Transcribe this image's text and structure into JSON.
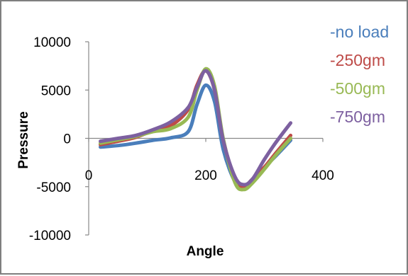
{
  "chart_data": {
    "type": "line",
    "title": "",
    "xlabel": "Angle",
    "ylabel": "Pressure",
    "xlim": [
      0,
      400
    ],
    "ylim": [
      -10000,
      10000
    ],
    "x_ticks": [
      "0",
      "200",
      "400"
    ],
    "y_ticks": [
      "10000",
      "5000",
      "0",
      "-5000",
      "-10000"
    ],
    "x_tick_values": [
      0,
      200,
      400
    ],
    "y_tick_values": [
      10000,
      5000,
      0,
      -5000,
      -10000
    ],
    "grid": false,
    "legend_position": "right",
    "series": [
      {
        "name": "-no load",
        "color": "#4a7ebb",
        "x": [
          20,
          50,
          80,
          110,
          140,
          170,
          185,
          200,
          215,
          230,
          250,
          265,
          280,
          300,
          320,
          345
        ],
        "y": [
          -900,
          -750,
          -500,
          -200,
          50,
          700,
          3500,
          5500,
          3800,
          -1200,
          -4500,
          -5000,
          -4200,
          -3000,
          -1800,
          -200
        ]
      },
      {
        "name": "-250gm",
        "color": "#be4b48",
        "x": [
          20,
          50,
          80,
          110,
          140,
          170,
          185,
          200,
          215,
          230,
          250,
          265,
          280,
          300,
          320,
          345
        ],
        "y": [
          -650,
          -300,
          100,
          800,
          1300,
          3000,
          5500,
          7000,
          5000,
          -200,
          -4300,
          -5000,
          -4200,
          -3000,
          -1500,
          300
        ]
      },
      {
        "name": "-500gm",
        "color": "#98b954",
        "x": [
          20,
          50,
          80,
          110,
          140,
          170,
          185,
          200,
          215,
          230,
          250,
          265,
          280,
          300,
          320,
          345
        ],
        "y": [
          -500,
          -150,
          200,
          700,
          1000,
          2200,
          5000,
          7200,
          5400,
          -100,
          -4600,
          -5300,
          -4600,
          -3200,
          -1700,
          0
        ]
      },
      {
        "name": "-750gm",
        "color": "#7d60a0",
        "x": [
          20,
          50,
          80,
          110,
          140,
          170,
          185,
          200,
          215,
          230,
          250,
          265,
          280,
          300,
          320,
          345
        ],
        "y": [
          -300,
          0,
          300,
          900,
          1700,
          3200,
          5300,
          7000,
          5000,
          -300,
          -4000,
          -4800,
          -4200,
          -2200,
          -400,
          1600
        ]
      }
    ]
  }
}
